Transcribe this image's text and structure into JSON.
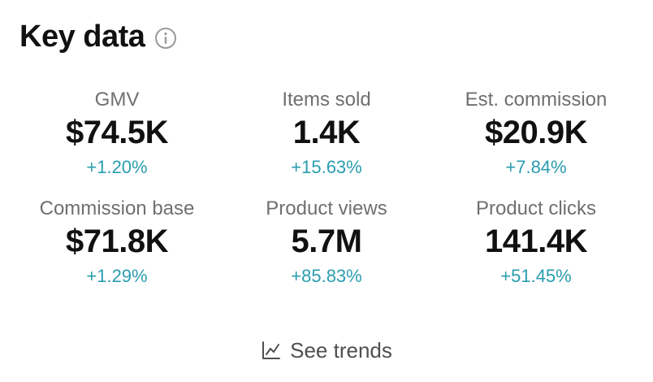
{
  "header": {
    "title": "Key data",
    "info_icon": "info-circle-icon"
  },
  "metrics": [
    {
      "label": "GMV",
      "value": "$74.5K",
      "change": "+1.20%"
    },
    {
      "label": "Items sold",
      "value": "1.4K",
      "change": "+15.63%"
    },
    {
      "label": "Est. commission",
      "value": "$20.9K",
      "change": "+7.84%"
    },
    {
      "label": "Commission base",
      "value": "$71.8K",
      "change": "+1.29%"
    },
    {
      "label": "Product views",
      "value": "5.7M",
      "change": "+85.83%"
    },
    {
      "label": "Product clicks",
      "value": "141.4K",
      "change": "+51.45%"
    }
  ],
  "footer": {
    "see_trends_label": "See trends",
    "icon": "line-chart-icon"
  },
  "colors": {
    "positive_change": "#2a9db0",
    "label": "#6f6f6f",
    "value": "#111111"
  }
}
